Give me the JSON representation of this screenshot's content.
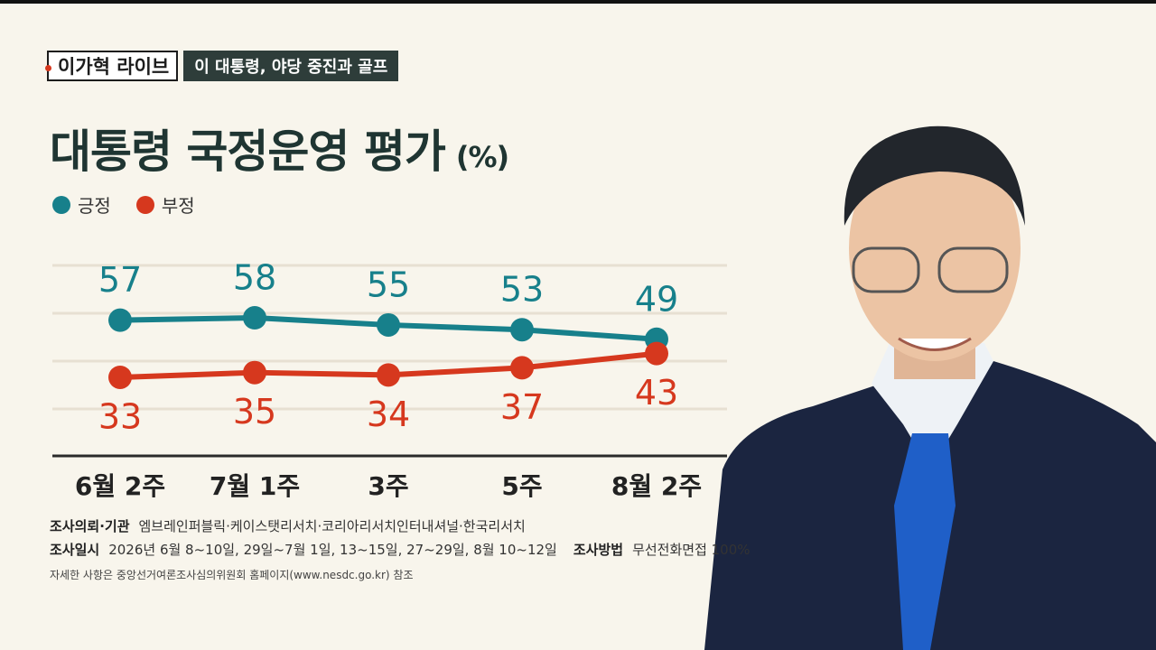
{
  "header": {
    "show": "이가혁 라이브",
    "topic": "이 대통령, 야당 중진과 골프"
  },
  "chart_data": {
    "type": "line",
    "title": "대통령 국정운영 평가",
    "unit": "(%)",
    "categories": [
      "6월 2주",
      "7월 1주",
      "3주",
      "5주",
      "8월 2주"
    ],
    "series": [
      {
        "name": "긍정",
        "color": "#17808b",
        "values": [
          57,
          58,
          55,
          53,
          49
        ]
      },
      {
        "name": "부정",
        "color": "#d6381e",
        "values": [
          33,
          35,
          34,
          37,
          43
        ]
      }
    ],
    "ylim": [
      0,
      80
    ]
  },
  "footer": {
    "sponsor_label": "조사의뢰·기관",
    "sponsor": "엠브레인퍼블릭·케이스탯리서치·코리아리서치인터내셔널·한국리서치",
    "date_label": "조사일시",
    "date": "2026년 6월 8~10일, 29일~7월 1일, 13~15일, 27~29일, 8월 10~12일",
    "method_label": "조사방법",
    "method": "무선전화면접 100%",
    "note": "자세한 사항은 중앙선거여론조사심의위원회 홈페이지(www.nesdc.go.kr) 참조"
  }
}
